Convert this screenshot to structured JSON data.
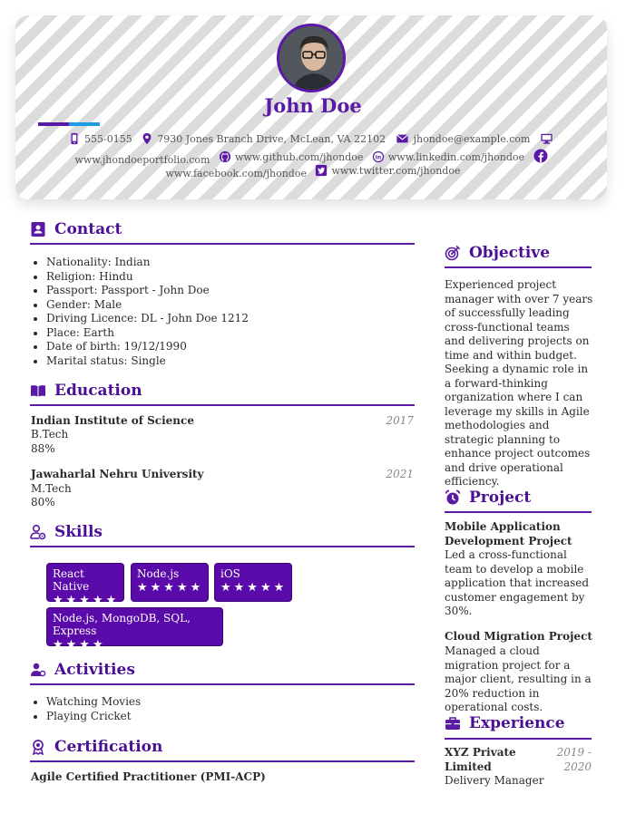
{
  "header": {
    "name": "John Doe",
    "phone": "555-0155",
    "address": "7930 Jones Branch Drive, McLean, VA 22102",
    "email": "jhondoe@example.com",
    "portfolio": "www.jhondoeportfolio.com",
    "github": "www.github.com/jhondoe",
    "linkedin": "www.linkedin.com/jhondoe",
    "facebook": "www.facebook.com/jhondoe",
    "twitter": "www.twitter.com/jhondoe"
  },
  "colors": {
    "accent": "#5b1aa6",
    "skill_bg": "#5a0aa8",
    "accent_blue": "#1e9be3"
  },
  "contact": {
    "title": "Contact",
    "items": [
      "Nationality: Indian",
      "Religion: Hindu",
      "Passport: Passport - John Doe",
      "Gender: Male",
      "Driving Licence: DL - John Doe 1212",
      "Place: Earth",
      "Date of birth: 19/12/1990",
      "Marital status: Single"
    ]
  },
  "education": {
    "title": "Education",
    "entries": [
      {
        "school": "Indian Institute of Science",
        "year": "2017",
        "degree": "B.Tech",
        "score": "88%"
      },
      {
        "school": "Jawaharlal Nehru University",
        "year": "2021",
        "degree": "M.Tech",
        "score": "80%"
      }
    ]
  },
  "skills": {
    "title": "Skills",
    "items": [
      {
        "name": "React Native",
        "stars": "★★★★★",
        "rating": 5
      },
      {
        "name": "Node.js",
        "stars": "★★★★★",
        "rating": 5
      },
      {
        "name": "iOS",
        "stars": "★★★★★",
        "rating": 5
      },
      {
        "name": "Node.js, MongoDB, SQL, Express",
        "stars": "★★★★",
        "rating": 4
      }
    ]
  },
  "activities": {
    "title": "Activities",
    "items": [
      "Watching Movies",
      "Playing Cricket"
    ]
  },
  "certification": {
    "title": "Certification",
    "items": [
      "Agile Certified Practitioner (PMI-ACP)"
    ]
  },
  "objective": {
    "title": "Objective",
    "text": "Experienced project manager with over 7 years of successfully leading cross-functional teams and delivering projects on time and within budget. Seeking a dynamic role in a forward-thinking organization where I can leverage my skills in Agile methodologies and strategic planning to enhance project outcomes and drive operational efficiency."
  },
  "project": {
    "title": "Project",
    "entries": [
      {
        "name": "Mobile Application Development Project",
        "desc": "Led a cross-functional team to develop a mobile application that increased customer engagement by 30%."
      },
      {
        "name": "Cloud Migration Project",
        "desc": "Managed a cloud migration project for a major client, resulting in a 20% reduction in operational costs."
      }
    ]
  },
  "experience": {
    "title": "Experience",
    "entries": [
      {
        "company": "XYZ Private Limited",
        "dates": "2019 - 2020",
        "role": "Delivery Manager"
      }
    ]
  }
}
